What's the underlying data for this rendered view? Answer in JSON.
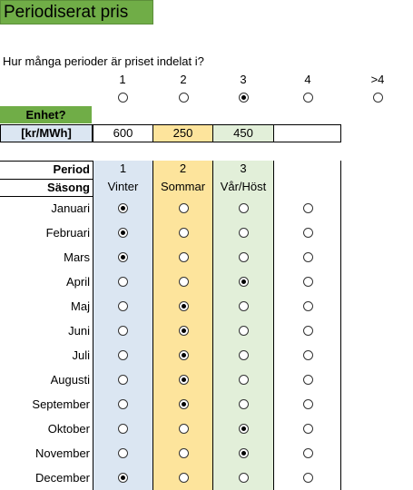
{
  "title": "Periodiserat pris",
  "question": "Hur många perioder är priset indelat i?",
  "period_options": [
    {
      "label": "1",
      "selected": false
    },
    {
      "label": "2",
      "selected": false
    },
    {
      "label": "3",
      "selected": true
    },
    {
      "label": "4",
      "selected": false
    },
    {
      "label": ">4",
      "selected": false
    }
  ],
  "unit_prompt": "Enhet?",
  "unit": "[kr/MWh]",
  "prices": [
    "600",
    "250",
    "450",
    ""
  ],
  "period_label": "Period",
  "season_label": "Säsong",
  "periods": [
    "1",
    "2",
    "3",
    ""
  ],
  "seasons": [
    "Vinter",
    "Sommar",
    "Vår/Höst",
    ""
  ],
  "colors": {
    "title_green": "#70ad47",
    "blue": "#dbe6f2",
    "yellow": "#fde49c",
    "green": "#e2efd9"
  },
  "months": [
    {
      "name": "Januari",
      "selected_col": 1
    },
    {
      "name": "Februari",
      "selected_col": 1
    },
    {
      "name": "Mars",
      "selected_col": 1
    },
    {
      "name": "April",
      "selected_col": 3
    },
    {
      "name": "Maj",
      "selected_col": 2
    },
    {
      "name": "Juni",
      "selected_col": 2
    },
    {
      "name": "Juli",
      "selected_col": 2
    },
    {
      "name": "Augusti",
      "selected_col": 2
    },
    {
      "name": "September",
      "selected_col": 2
    },
    {
      "name": "Oktober",
      "selected_col": 3
    },
    {
      "name": "November",
      "selected_col": 3
    },
    {
      "name": "December",
      "selected_col": 1
    }
  ]
}
